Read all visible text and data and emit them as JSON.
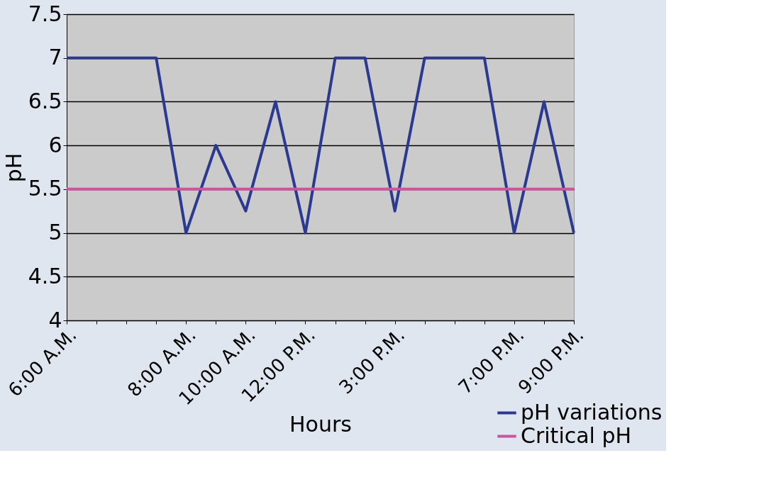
{
  "chart_data": {
    "type": "line",
    "xlabel": "Hours",
    "ylabel": "pH",
    "categories": [
      "6:00 A.M.",
      null,
      null,
      null,
      "8:00 A.M.",
      null,
      "10:00 A.M.",
      null,
      "12:00 P.M.",
      null,
      null,
      "3:00 P.M.",
      null,
      null,
      null,
      "7:00 P.M.",
      null,
      "9:00 P.M."
    ],
    "series": [
      {
        "name": "pH variations",
        "color": "#2b3990",
        "values": [
          7,
          7,
          7,
          7,
          5,
          6,
          5.25,
          6.5,
          5,
          7,
          7,
          5.25,
          7,
          7,
          7,
          5,
          6.5,
          5
        ]
      },
      {
        "name": "Critical pH",
        "color": "#c9569f",
        "values": [
          5.5,
          5.5,
          5.5,
          5.5,
          5.5,
          5.5,
          5.5,
          5.5,
          5.5,
          5.5,
          5.5,
          5.5,
          5.5,
          5.5,
          5.5,
          5.5,
          5.5,
          5.5
        ]
      }
    ],
    "ylim": [
      4,
      7.5
    ],
    "yticks": [
      4,
      4.5,
      5,
      5.5,
      6,
      6.5,
      7,
      7.5
    ],
    "grid": "y",
    "legend": "bottom right",
    "marker": "none",
    "line_style": "solid"
  }
}
